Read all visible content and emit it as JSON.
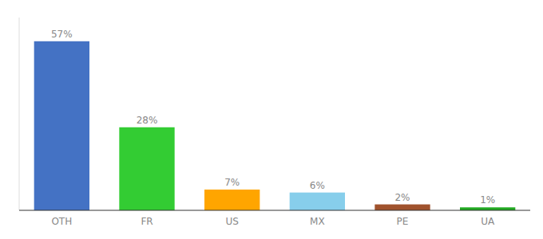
{
  "chart_data": {
    "type": "bar",
    "categories": [
      "OTH",
      "FR",
      "US",
      "MX",
      "PE",
      "UA"
    ],
    "values": [
      57,
      28,
      7,
      6,
      2,
      1
    ],
    "value_labels": [
      "57%",
      "28%",
      "7%",
      "6%",
      "2%",
      "1%"
    ],
    "colors": [
      "#4472C4",
      "#33CC33",
      "#FFA500",
      "#87CEEB",
      "#A0522D",
      "#22AA22"
    ],
    "ylim": [
      0,
      65
    ],
    "data_labels": true,
    "tick_labels": "x",
    "grid": false
  }
}
